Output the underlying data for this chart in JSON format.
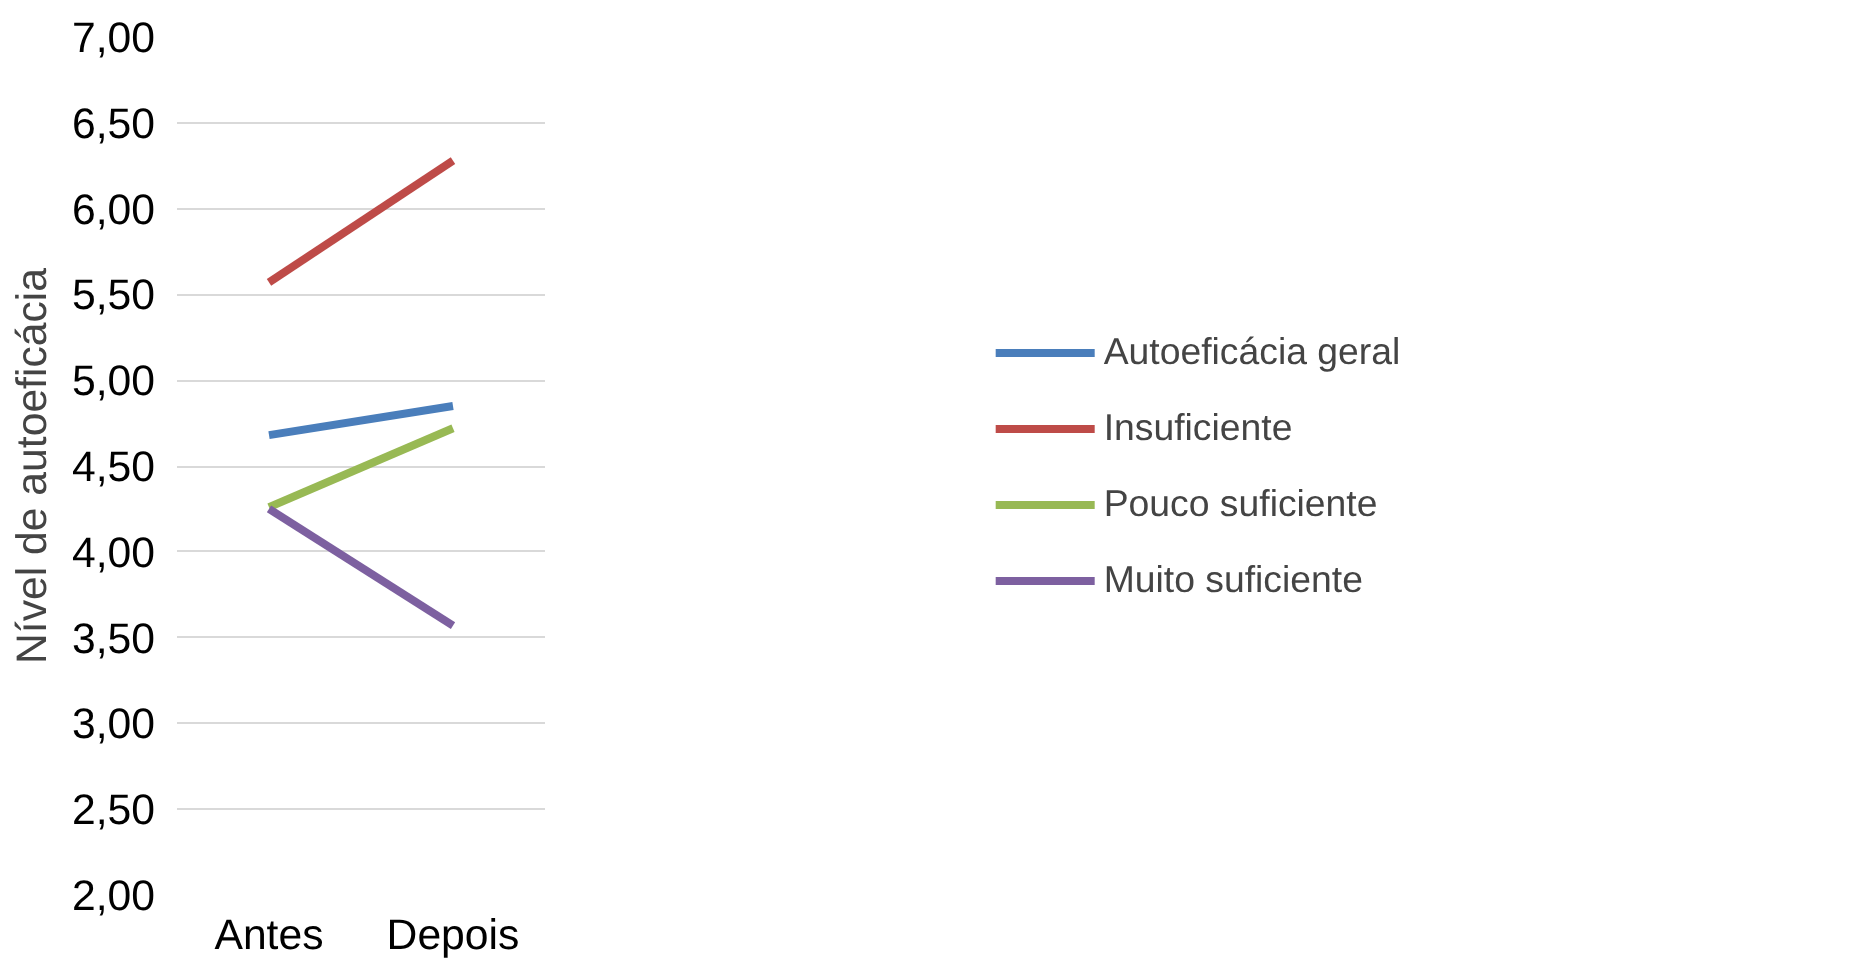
{
  "chart_data": {
    "type": "line",
    "ylabel": "Nível de autoeficácia",
    "categories": [
      "Antes",
      "Depois"
    ],
    "series": [
      {
        "name": "Autoeficácia geral",
        "color": "#4a7ebb",
        "values": [
          4.68,
          4.85
        ]
      },
      {
        "name": "Insuficiente",
        "color": "#be4b48",
        "values": [
          5.57,
          6.28
        ]
      },
      {
        "name": "Pouco suficiente",
        "color": "#98b954",
        "values": [
          4.26,
          4.72
        ]
      },
      {
        "name": "Muito suficiente",
        "color": "#7d60a0",
        "values": [
          4.25,
          3.57
        ]
      }
    ],
    "ylim": [
      2,
      7
    ],
    "yticks": [
      {
        "value": 2,
        "label": "2,00"
      },
      {
        "value": 2.5,
        "label": "2,50"
      },
      {
        "value": 3,
        "label": "3,00"
      },
      {
        "value": 3.5,
        "label": "3,50"
      },
      {
        "value": 4,
        "label": "4,00"
      },
      {
        "value": 4.5,
        "label": "4,50"
      },
      {
        "value": 5,
        "label": "5,00"
      },
      {
        "value": 5.5,
        "label": "5,50"
      },
      {
        "value": 6,
        "label": "6,00"
      },
      {
        "value": 6.5,
        "label": "6,50"
      },
      {
        "value": 7,
        "label": "7,00"
      }
    ],
    "grid": "y",
    "legend": "right",
    "marker": "none",
    "line_style": "solid"
  }
}
